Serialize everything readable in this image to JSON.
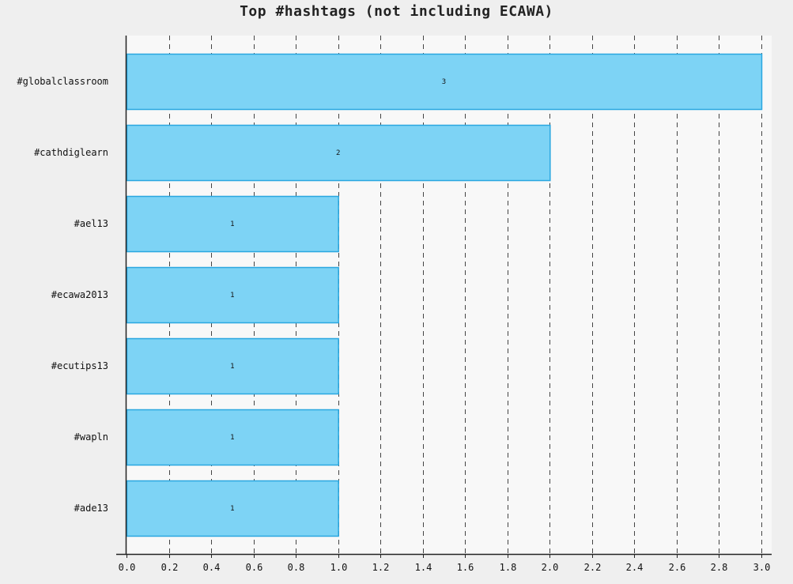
{
  "chart_data": {
    "type": "bar",
    "orientation": "horizontal",
    "title": "Top #hashtags (not including ECAWA)",
    "xlabel": "",
    "ylabel": "",
    "categories": [
      "#globalclassroom",
      "#cathdiglearn",
      "#ael13",
      "#ecawa2013",
      "#ecutips13",
      "#wapln",
      "#ade13"
    ],
    "values": [
      3,
      2,
      1,
      1,
      1,
      1,
      1
    ],
    "data_labels": [
      "3",
      "2",
      "1",
      "1",
      "1",
      "1",
      "1"
    ],
    "xlim": [
      0,
      3
    ],
    "x_ticks": [
      "0.0",
      "0.2",
      "0.4",
      "0.6",
      "0.8",
      "1.0",
      "1.2",
      "1.4",
      "1.6",
      "1.8",
      "2.0",
      "2.2",
      "2.4",
      "2.6",
      "2.8",
      "3.0"
    ],
    "x_tick_values": [
      0,
      0.2,
      0.4,
      0.6,
      0.8,
      1.0,
      1.2,
      1.4,
      1.6,
      1.8,
      2.0,
      2.2,
      2.4,
      2.6,
      2.8,
      3.0
    ],
    "grid": "vertical-dashed",
    "legend": "none",
    "colors": {
      "bar_fill": "#7dd3f5",
      "bar_stroke": "#2aa7e0",
      "plot_bg": "#f8f8f8",
      "page_bg": "#efefef",
      "grid": "#444444",
      "axis": "#222222"
    }
  }
}
